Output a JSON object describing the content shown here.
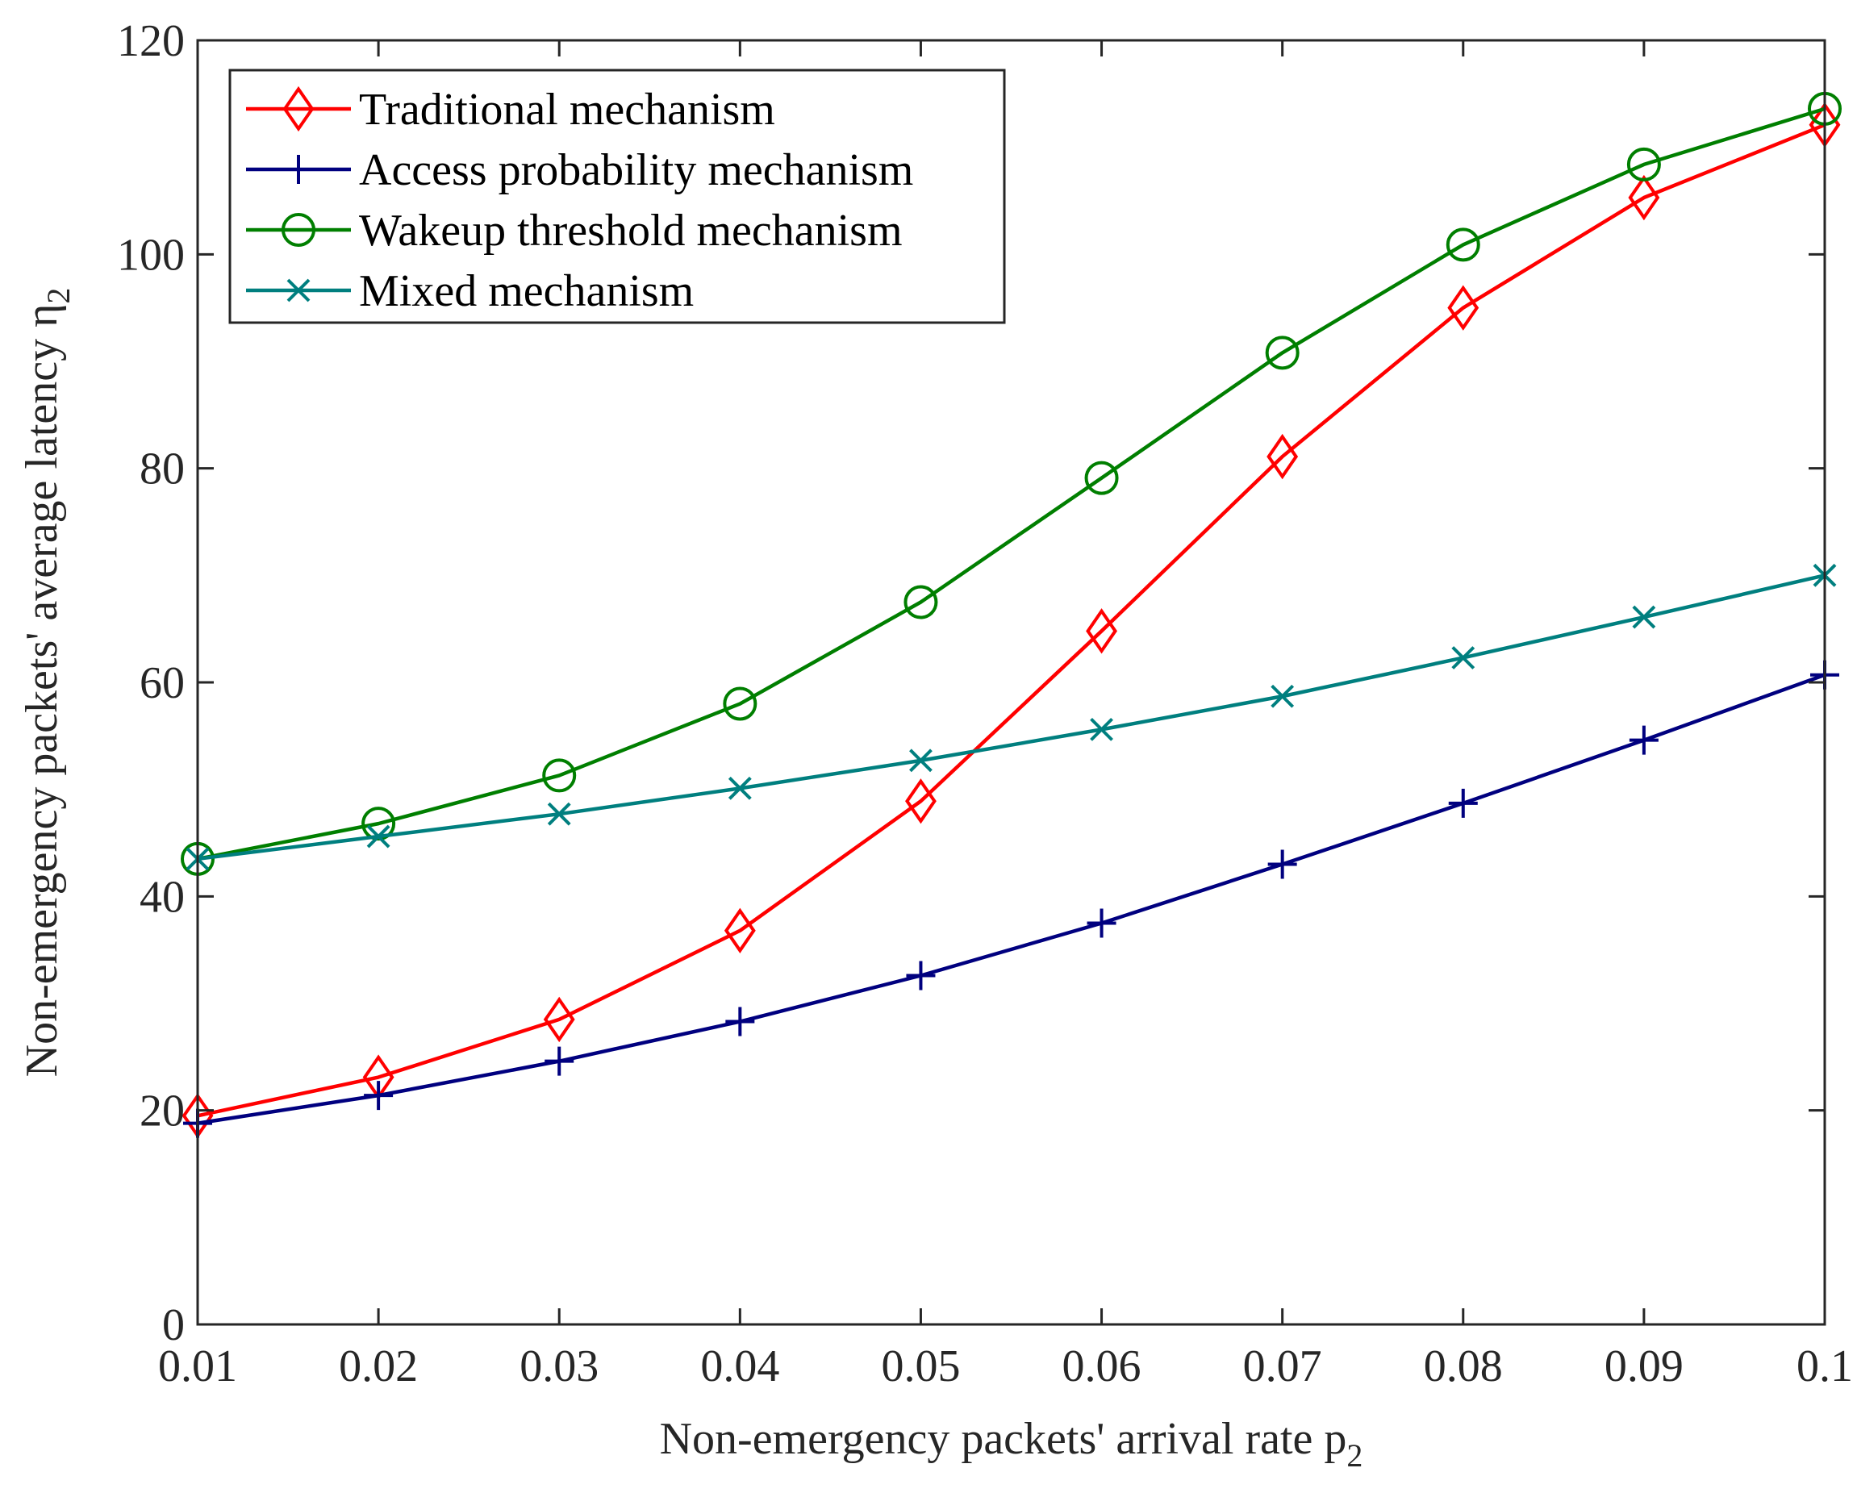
{
  "chart_data": {
    "type": "line",
    "title": "",
    "xlabel": "Non-emergency packets' arrival rate p",
    "xlabel_subscript": "2",
    "ylabel": "Non-emergency packets' average latency η",
    "ylabel_subscript": "2",
    "x": [
      0.01,
      0.02,
      0.03,
      0.04,
      0.05,
      0.06,
      0.07,
      0.08,
      0.09,
      0.1
    ],
    "xlim": [
      0.01,
      0.1
    ],
    "ylim": [
      0,
      120
    ],
    "xticks": [
      0.01,
      0.02,
      0.03,
      0.04,
      0.05,
      0.06,
      0.07,
      0.08,
      0.09,
      0.1
    ],
    "xtick_labels": [
      "0.01",
      "0.02",
      "0.03",
      "0.04",
      "0.05",
      "0.06",
      "0.07",
      "0.08",
      "0.09",
      "0.1"
    ],
    "yticks": [
      0,
      20,
      40,
      60,
      80,
      100,
      120
    ],
    "ytick_labels": [
      "0",
      "20",
      "40",
      "60",
      "80",
      "100",
      "120"
    ],
    "grid": false,
    "legend_position": "top-left",
    "series": [
      {
        "name": "Traditional mechanism",
        "color": "#ff0000",
        "marker": "diamond",
        "values": [
          19.5,
          23.1,
          28.5,
          36.8,
          48.9,
          64.8,
          81.1,
          95.0,
          105.3,
          112.1
        ]
      },
      {
        "name": "Access probability mechanism",
        "color": "#00007f",
        "marker": "plus",
        "values": [
          18.8,
          21.4,
          24.6,
          28.3,
          32.6,
          37.5,
          43.0,
          48.7,
          54.6,
          60.7
        ]
      },
      {
        "name": "Wakeup threshold mechanism",
        "color": "#007f00",
        "marker": "circle",
        "values": [
          43.5,
          46.8,
          51.3,
          58.0,
          67.5,
          79.1,
          90.8,
          100.9,
          108.4,
          113.6
        ]
      },
      {
        "name": "Mixed mechanism",
        "color": "#007f7f",
        "marker": "x",
        "values": [
          43.5,
          45.6,
          47.7,
          50.1,
          52.7,
          55.6,
          58.7,
          62.3,
          66.1,
          70.0
        ]
      }
    ]
  }
}
